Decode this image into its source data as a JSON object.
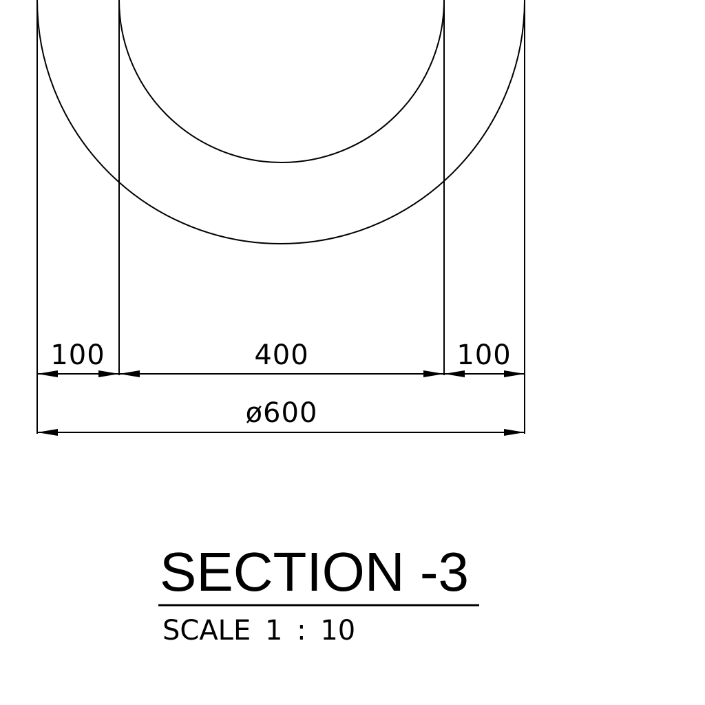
{
  "dimensions": {
    "left_wall": "100",
    "inner": "400",
    "right_wall": "100",
    "outer": "ø600"
  },
  "title": {
    "section": "SECTION -3",
    "scale": "SCALE 1 : 10"
  }
}
